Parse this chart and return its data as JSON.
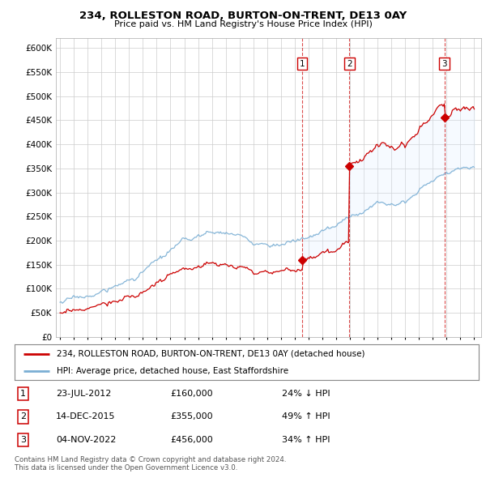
{
  "title": "234, ROLLESTON ROAD, BURTON-ON-TRENT, DE13 0AY",
  "subtitle": "Price paid vs. HM Land Registry's House Price Index (HPI)",
  "ylim": [
    0,
    620000
  ],
  "yticks": [
    0,
    50000,
    100000,
    150000,
    200000,
    250000,
    300000,
    350000,
    400000,
    450000,
    500000,
    550000,
    600000
  ],
  "ytick_labels": [
    "£0",
    "£50K",
    "£100K",
    "£150K",
    "£200K",
    "£250K",
    "£300K",
    "£350K",
    "£400K",
    "£450K",
    "£500K",
    "£550K",
    "£600K"
  ],
  "sale_dates": [
    2012.55,
    2015.96,
    2022.84
  ],
  "sale_prices": [
    160000,
    355000,
    456000
  ],
  "sale_labels": [
    "1",
    "2",
    "3"
  ],
  "legend_house": "234, ROLLESTON ROAD, BURTON-ON-TRENT, DE13 0AY (detached house)",
  "legend_hpi": "HPI: Average price, detached house, East Staffordshire",
  "table_data": [
    [
      "1",
      "23-JUL-2012",
      "£160,000",
      "24% ↓ HPI"
    ],
    [
      "2",
      "14-DEC-2015",
      "£355,000",
      "49% ↑ HPI"
    ],
    [
      "3",
      "04-NOV-2022",
      "£456,000",
      "34% ↑ HPI"
    ]
  ],
  "footer": "Contains HM Land Registry data © Crown copyright and database right 2024.\nThis data is licensed under the Open Government Licence v3.0.",
  "house_color": "#cc0000",
  "hpi_color": "#7bafd4",
  "shade_color": "#ddeeff",
  "vline_color": "#cc0000",
  "background_color": "#ffffff"
}
